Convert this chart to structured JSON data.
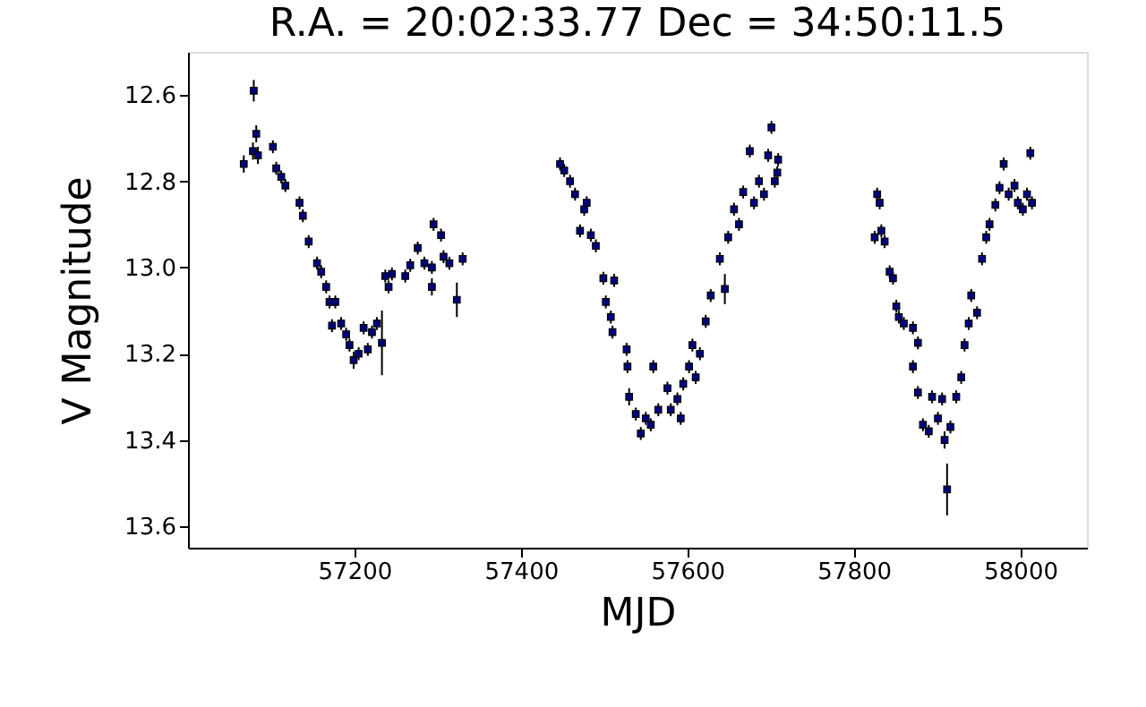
{
  "chart_data": {
    "type": "scatter",
    "title": "R.A. = 20:02:33.77   Dec = 34:50:11.5",
    "xlabel": "MJD",
    "ylabel": "V Magnitude",
    "xlim": [
      57000,
      58080
    ],
    "xticks": [
      57200,
      57400,
      57600,
      57800,
      58000
    ],
    "ylim": [
      13.65,
      12.5
    ],
    "yticks": [
      12.6,
      12.8,
      {
        "value": 13,
        "label": "13.0"
      },
      13.2,
      13.4,
      13.6
    ],
    "grid": false,
    "marker": "square",
    "series": [
      {
        "color": "#000080",
        "x": [
          57067,
          57079,
          57078,
          57082,
          57084,
          57102,
          57106,
          57112,
          57117,
          57134,
          57138,
          57145,
          57155,
          57160,
          57166,
          57170,
          57177,
          57173,
          57184,
          57190,
          57194,
          57199,
          57205,
          57211,
          57216,
          57221,
          57227,
          57233,
          57237,
          57241,
          57245,
          57261,
          57267,
          57276,
          57284,
          57293,
          57295,
          57293,
          57304,
          57307,
          57314,
          57323,
          57330,
          57447,
          57452,
          57459,
          57465,
          57471,
          57476,
          57479,
          57484,
          57490,
          57499,
          57502,
          57508,
          57512,
          57510,
          57527,
          57528,
          57530,
          57538,
          57544,
          57550,
          57556,
          57559,
          57565,
          57576,
          57580,
          57588,
          57592,
          57595,
          57602,
          57606,
          57610,
          57615,
          57622,
          57628,
          57639,
          57645,
          57649,
          57656,
          57662,
          57667,
          57675,
          57680,
          57686,
          57692,
          57697,
          57701,
          57705,
          57709,
          57708,
          57828,
          57831,
          57825,
          57833,
          57837,
          57843,
          57847,
          57851,
          57854,
          57860,
          57871,
          57877,
          57871,
          57877,
          57883,
          57890,
          57894,
          57901,
          57906,
          57909,
          57912,
          57916,
          57923,
          57929,
          57933,
          57938,
          57941,
          57948,
          57954,
          57959,
          57963,
          57970,
          57975,
          57980,
          57986,
          57993,
          57997,
          58003,
          58008,
          58012,
          58014
        ],
        "values": [
          12.76,
          12.59,
          12.73,
          12.69,
          12.74,
          12.72,
          12.77,
          12.79,
          12.81,
          12.85,
          12.88,
          12.94,
          12.99,
          13.01,
          13.045,
          13.08,
          13.08,
          13.135,
          13.13,
          13.155,
          13.18,
          13.215,
          13.2,
          13.14,
          13.19,
          13.15,
          13.13,
          13.175,
          13.02,
          13.045,
          13.015,
          13.02,
          12.995,
          12.955,
          12.99,
          13.0,
          12.9,
          13.045,
          12.925,
          12.975,
          12.99,
          13.075,
          12.98,
          12.76,
          12.775,
          12.8,
          12.83,
          12.915,
          12.865,
          12.85,
          12.925,
          12.95,
          13.025,
          13.08,
          13.115,
          13.03,
          13.15,
          13.19,
          13.23,
          13.3,
          13.34,
          13.385,
          13.35,
          13.365,
          13.23,
          13.33,
          13.28,
          13.33,
          13.305,
          13.35,
          13.27,
          13.23,
          13.18,
          13.255,
          13.2,
          13.125,
          13.065,
          12.98,
          13.05,
          12.93,
          12.865,
          12.9,
          12.825,
          12.73,
          12.85,
          12.8,
          12.83,
          12.74,
          12.675,
          12.8,
          12.75,
          12.78,
          12.83,
          12.85,
          12.93,
          12.915,
          12.94,
          13.01,
          13.025,
          13.09,
          13.115,
          13.13,
          13.14,
          13.175,
          13.23,
          13.29,
          13.365,
          13.38,
          13.3,
          13.35,
          13.305,
          13.4,
          13.515,
          13.37,
          13.3,
          13.255,
          13.18,
          13.13,
          13.065,
          13.105,
          12.98,
          12.93,
          12.9,
          12.855,
          12.815,
          12.76,
          12.83,
          12.81,
          12.85,
          12.865,
          12.83,
          12.735,
          12.85
        ],
        "errors": [
          0.02,
          0.025,
          0.02,
          0.02,
          0.02,
          0.015,
          0.015,
          0.015,
          0.015,
          0.015,
          0.015,
          0.015,
          0.015,
          0.015,
          0.015,
          0.015,
          0.015,
          0.015,
          0.015,
          0.015,
          0.015,
          0.02,
          0.015,
          0.015,
          0.015,
          0.015,
          0.015,
          0.075,
          0.015,
          0.015,
          0.015,
          0.015,
          0.015,
          0.015,
          0.015,
          0.015,
          0.015,
          0.02,
          0.015,
          0.015,
          0.015,
          0.04,
          0.015,
          0.015,
          0.015,
          0.015,
          0.015,
          0.015,
          0.015,
          0.015,
          0.015,
          0.015,
          0.015,
          0.015,
          0.015,
          0.015,
          0.015,
          0.015,
          0.015,
          0.02,
          0.015,
          0.015,
          0.015,
          0.015,
          0.015,
          0.015,
          0.015,
          0.015,
          0.015,
          0.015,
          0.015,
          0.015,
          0.015,
          0.015,
          0.015,
          0.015,
          0.015,
          0.015,
          0.035,
          0.015,
          0.015,
          0.015,
          0.015,
          0.015,
          0.015,
          0.015,
          0.015,
          0.015,
          0.015,
          0.015,
          0.015,
          0.015,
          0.015,
          0.015,
          0.015,
          0.015,
          0.015,
          0.015,
          0.015,
          0.015,
          0.015,
          0.015,
          0.015,
          0.015,
          0.015,
          0.015,
          0.015,
          0.015,
          0.015,
          0.015,
          0.015,
          0.02,
          0.06,
          0.015,
          0.015,
          0.015,
          0.015,
          0.015,
          0.015,
          0.015,
          0.015,
          0.015,
          0.015,
          0.015,
          0.015,
          0.015,
          0.015,
          0.015,
          0.015,
          0.015,
          0.015,
          0.015,
          0.015
        ]
      }
    ]
  }
}
